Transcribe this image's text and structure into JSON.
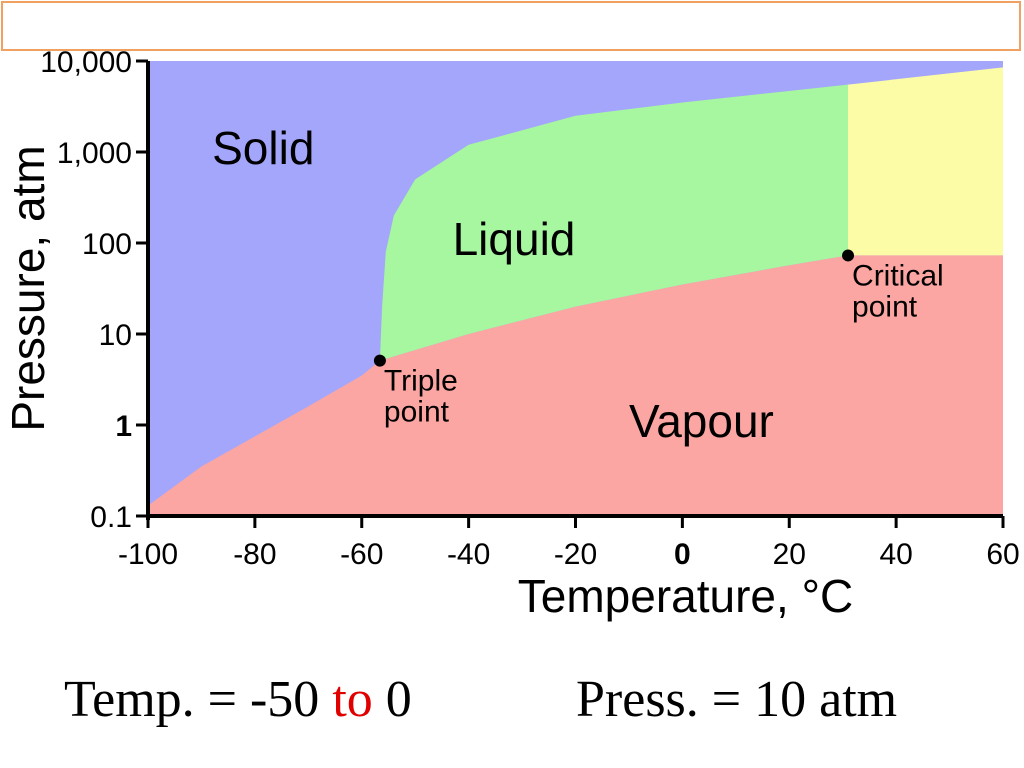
{
  "chart_data": {
    "type": "area",
    "xlabel": "Temperature, °C",
    "ylabel": "Pressure, atm",
    "xlim": [
      -100,
      60
    ],
    "ylim": [
      0.1,
      10000
    ],
    "y_scale": "log",
    "x_ticks": [
      "-100",
      "-80",
      "-60",
      "-40",
      "-20",
      "0",
      "20",
      "40",
      "60"
    ],
    "x_tick_values": [
      -100,
      -80,
      -60,
      -40,
      -20,
      0,
      20,
      40,
      60
    ],
    "y_ticks": [
      "0.1",
      "1",
      "10",
      "100",
      "1,000",
      "10,000"
    ],
    "y_tick_values": [
      0.1,
      1,
      10,
      100,
      1000,
      10000
    ],
    "colors": {
      "solid": "#a3a6fb",
      "liquid": "#a6f7a0",
      "vapour": "#fba6a2",
      "supercritical": "#fdfca6"
    },
    "regions": [
      {
        "name": "Solid",
        "label_at": [
          -88,
          1000
        ]
      },
      {
        "name": "Liquid",
        "label_at": [
          -43,
          100
        ]
      },
      {
        "name": "Vapour",
        "label_at": [
          -10,
          1
        ]
      }
    ],
    "points": [
      {
        "name": "Triple point",
        "label": [
          "Triple",
          "point"
        ],
        "x": -56.6,
        "y": 5.1
      },
      {
        "name": "Critical point",
        "label": [
          "Critical",
          "point"
        ],
        "x": 31,
        "y": 73
      }
    ],
    "sublimation_curve": [
      [
        -100,
        0.13
      ],
      [
        -90,
        0.35
      ],
      [
        -80,
        0.75
      ],
      [
        -70,
        1.6
      ],
      [
        -60,
        3.5
      ],
      [
        -56.6,
        5.1
      ]
    ],
    "melting_curve": [
      [
        -56.6,
        5.1
      ],
      [
        -56.2,
        20
      ],
      [
        -55.5,
        80
      ],
      [
        -54,
        200
      ],
      [
        -50,
        500
      ],
      [
        -40,
        1200
      ],
      [
        -20,
        2500
      ],
      [
        0,
        3500
      ],
      [
        31,
        5500
      ],
      [
        60,
        8500
      ]
    ],
    "boiling_curve": [
      [
        -56.6,
        5.1
      ],
      [
        -40,
        10
      ],
      [
        -20,
        20
      ],
      [
        0,
        35
      ],
      [
        20,
        57
      ],
      [
        31,
        73
      ]
    ]
  },
  "caption": {
    "temp": "Temp. = -50",
    "to": "to",
    "temp_end": "0",
    "press": "Press. = 10 atm"
  }
}
